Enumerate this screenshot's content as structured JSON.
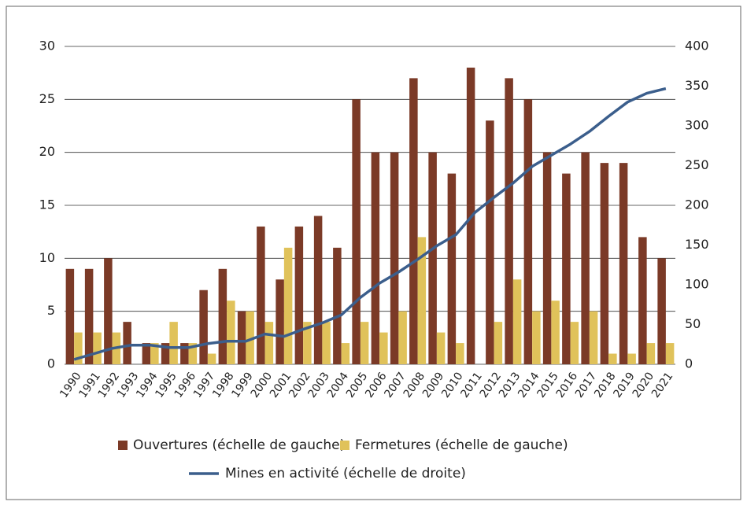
{
  "chart_data": {
    "type": "bar",
    "categories": [
      "1990",
      "1991",
      "1992",
      "1993",
      "1994",
      "1995",
      "1996",
      "1997",
      "1998",
      "1999",
      "2000",
      "2001",
      "2002",
      "2003",
      "2004",
      "2005",
      "2006",
      "2007",
      "2008",
      "2009",
      "2010",
      "2011",
      "2012",
      "2013",
      "2014",
      "2015",
      "2016",
      "2017",
      "2018",
      "2019",
      "2020",
      "2021"
    ],
    "series": [
      {
        "name": "Ouvertures (échelle de gauche)",
        "color": "#7b3a27",
        "type": "bar",
        "values": [
          9,
          9,
          10,
          4,
          2,
          2,
          2,
          7,
          9,
          5,
          13,
          8,
          13,
          14,
          11,
          25,
          20,
          20,
          27,
          20,
          18,
          28,
          23,
          27,
          25,
          20,
          18,
          20,
          19,
          19,
          12,
          10
        ]
      },
      {
        "name": "Fermetures (échelle de gauche)",
        "color": "#e0c25a",
        "type": "bar",
        "values": [
          3,
          3,
          3,
          0,
          2,
          4,
          2,
          1,
          6,
          5,
          4,
          11,
          4,
          4,
          2,
          4,
          3,
          5,
          12,
          3,
          2,
          0,
          4,
          8,
          5,
          6,
          4,
          5,
          1,
          1,
          2,
          2
        ]
      },
      {
        "name": "Mines en activité (échelle de droite)",
        "color": "#3b5e8c",
        "type": "line",
        "axis": "y2",
        "values": [
          6,
          13,
          20,
          24,
          24,
          21,
          21,
          26,
          29,
          29,
          38,
          35,
          44,
          52,
          62,
          84,
          102,
          116,
          132,
          149,
          163,
          191,
          210,
          228,
          249,
          263,
          277,
          293,
          312,
          330,
          341,
          347
        ]
      }
    ],
    "ylim": [
      0,
      30
    ],
    "yticks": [
      0,
      5,
      10,
      15,
      20,
      25,
      30
    ],
    "y2lim": [
      0,
      400
    ],
    "y2ticks": [
      0,
      50,
      100,
      150,
      200,
      250,
      300,
      350,
      400
    ],
    "grid": true
  }
}
